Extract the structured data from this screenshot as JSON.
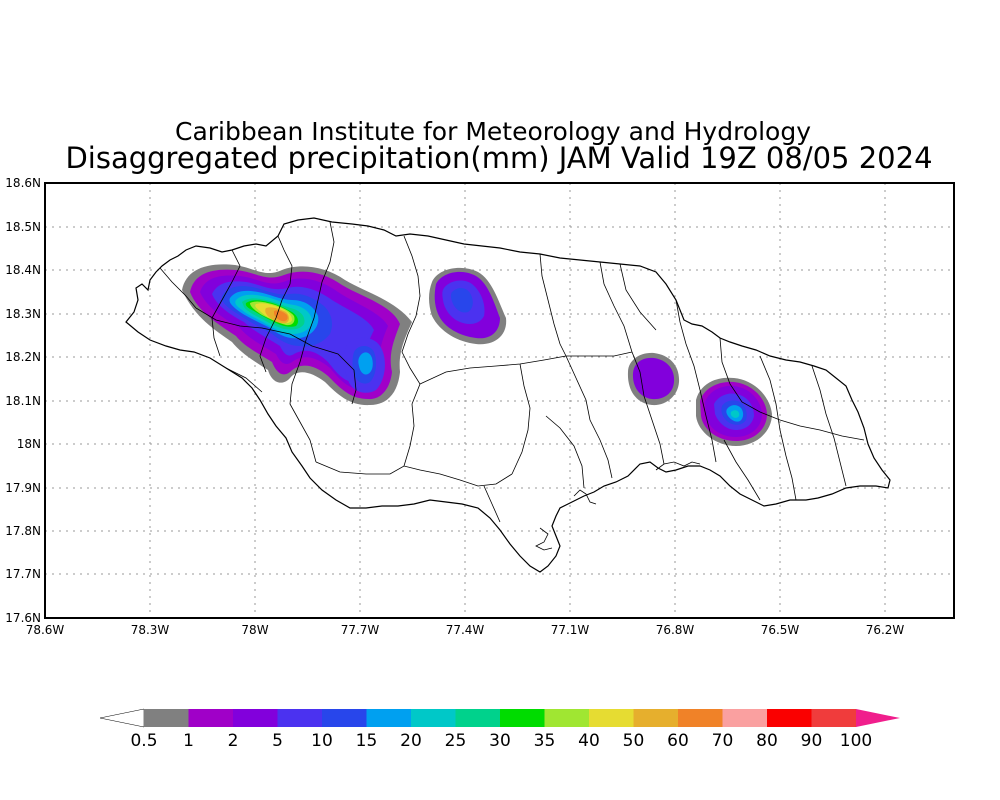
{
  "title": {
    "line1": "Caribbean Institute for Meteorology and Hydrology",
    "line2": "Disaggregated precipitation(mm) JAM Valid 19Z 08/05 2024"
  },
  "map": {
    "region": "Jamaica",
    "variable": "Disaggregated precipitation",
    "units": "mm",
    "valid_time": "19Z 08/05 2024",
    "lon_range": [
      -78.6,
      -76.1
    ],
    "lat_range": [
      17.6,
      18.6
    ],
    "gridlines": true,
    "lat_ticks": [
      "18.6N",
      "18.5N",
      "18.4N",
      "18.3N",
      "18.2N",
      "18.1N",
      "18N",
      "17.9N",
      "17.8N",
      "17.7N",
      "17.6N"
    ],
    "lon_ticks": [
      "78.6W",
      "78.3W",
      "78W",
      "77.7W",
      "77.4W",
      "77.1W",
      "76.8W",
      "76.5W",
      "76.2W"
    ]
  },
  "colorbar": {
    "labels": [
      "0.5",
      "1",
      "2",
      "5",
      "10",
      "15",
      "20",
      "25",
      "30",
      "35",
      "40",
      "50",
      "60",
      "70",
      "80",
      "90",
      "100"
    ],
    "colors": [
      "#808080",
      "#a000c8",
      "#8200dc",
      "#4b32f0",
      "#2846eb",
      "#00a0f0",
      "#00c8c8",
      "#00d28c",
      "#00dc00",
      "#a0e632",
      "#e6dc32",
      "#e6af2d",
      "#f08228",
      "#faa0a0",
      "#fa0000",
      "#f03c3c"
    ],
    "low_arrow_color": "#ffffff",
    "high_arrow_color": "#f01e8c"
  },
  "precip_cells": [
    {
      "name": "west-cluster",
      "lon": -77.97,
      "lat": 18.29,
      "peak_mm": 50
    },
    {
      "name": "west-central-cell",
      "lon": -77.69,
      "lat": 18.18,
      "peak_mm": 15
    },
    {
      "name": "north-cell",
      "lon": -77.41,
      "lat": 18.33,
      "peak_mm": 10
    },
    {
      "name": "east-central-cell",
      "lon": -76.82,
      "lat": 18.15,
      "peak_mm": 2
    },
    {
      "name": "southeast-cell",
      "lon": -76.62,
      "lat": 18.07,
      "peak_mm": 20
    }
  ]
}
